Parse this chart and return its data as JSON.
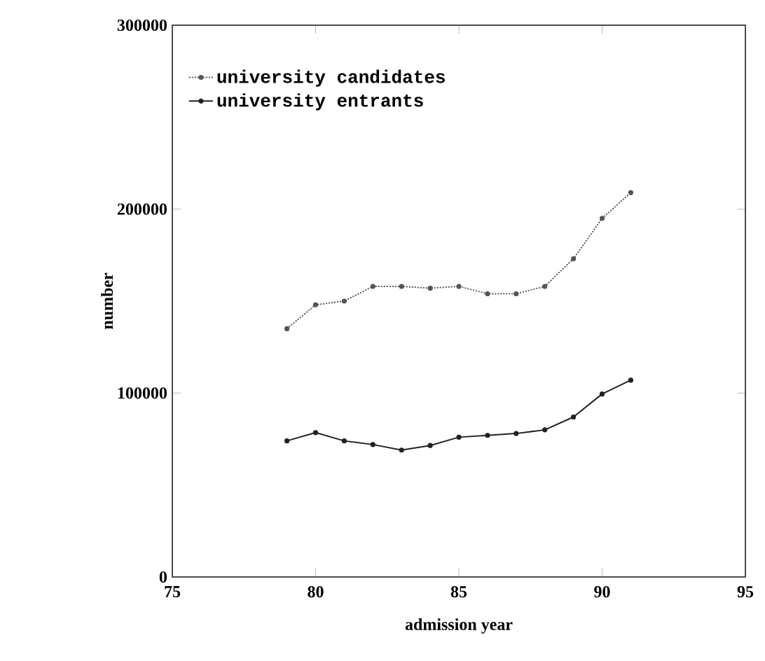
{
  "chart_data": {
    "type": "line",
    "xlabel": "admission year",
    "ylabel": "number",
    "x": [
      79,
      80,
      81,
      82,
      83,
      84,
      85,
      86,
      87,
      88,
      89,
      90,
      91
    ],
    "series": [
      {
        "name": "university candidates",
        "color": "#555555",
        "line_style": "dotted",
        "values": [
          135000,
          148000,
          150000,
          158000,
          158000,
          157000,
          158000,
          154000,
          154000,
          158000,
          173000,
          195000,
          209000
        ]
      },
      {
        "name": "university entrants",
        "color": "#222222",
        "line_style": "solid",
        "values": [
          74000,
          78500,
          74000,
          72000,
          69000,
          71500,
          76000,
          77000,
          78000,
          80000,
          87000,
          99500,
          107000
        ]
      }
    ],
    "marker": "circle",
    "legend": "top left",
    "xlim": [
      75,
      95
    ],
    "ylim": [
      0,
      300000
    ],
    "xticks": [
      75,
      80,
      85,
      90,
      95
    ],
    "yticks": [
      0,
      100000,
      200000,
      300000
    ],
    "grid": false
  }
}
